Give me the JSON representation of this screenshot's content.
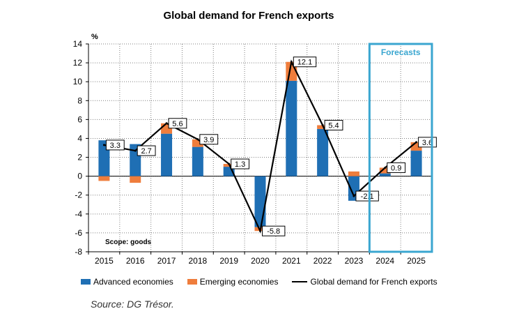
{
  "chart_data": {
    "type": "bar",
    "title": "Global demand for French exports",
    "ylabel": "%",
    "ylim": [
      -8,
      14
    ],
    "yticks": [
      14,
      12,
      10,
      8,
      6,
      4,
      2,
      0,
      -2,
      -4,
      -6,
      -8
    ],
    "categories": [
      "2015",
      "2016",
      "2017",
      "2018",
      "2019",
      "2020",
      "2021",
      "2022",
      "2023",
      "2024",
      "2025"
    ],
    "series": [
      {
        "name": "Advanced economies",
        "type": "stacked-bar",
        "color": "#1f6fb4",
        "values": [
          3.8,
          3.4,
          4.5,
          3.1,
          1.0,
          -5.4,
          10.1,
          5.0,
          -2.6,
          0.3,
          2.7
        ]
      },
      {
        "name": "Emerging economies",
        "type": "stacked-bar",
        "color": "#ef7d3c",
        "values": [
          -0.5,
          -0.7,
          1.1,
          0.8,
          0.3,
          -0.4,
          2.0,
          0.4,
          0.5,
          0.6,
          0.9
        ]
      },
      {
        "name": "Global demand for French exports",
        "type": "line",
        "color": "#000000",
        "values": [
          3.3,
          2.7,
          5.6,
          3.9,
          1.3,
          -5.8,
          12.1,
          5.4,
          -2.1,
          0.9,
          3.6
        ],
        "labels": [
          "3.3",
          "2.7",
          "5.6",
          "3.9",
          "1.3",
          "-5.8",
          "12.1",
          "5.4",
          "-2.1",
          "0.9",
          "3.6"
        ]
      }
    ],
    "annotations": {
      "scope": "Scope: goods",
      "forecast_label": "Forecasts",
      "forecast_color": "#3aa6d0"
    },
    "forecast_categories": [
      "2024",
      "2025"
    ],
    "source": "Source: DG Trésor."
  }
}
